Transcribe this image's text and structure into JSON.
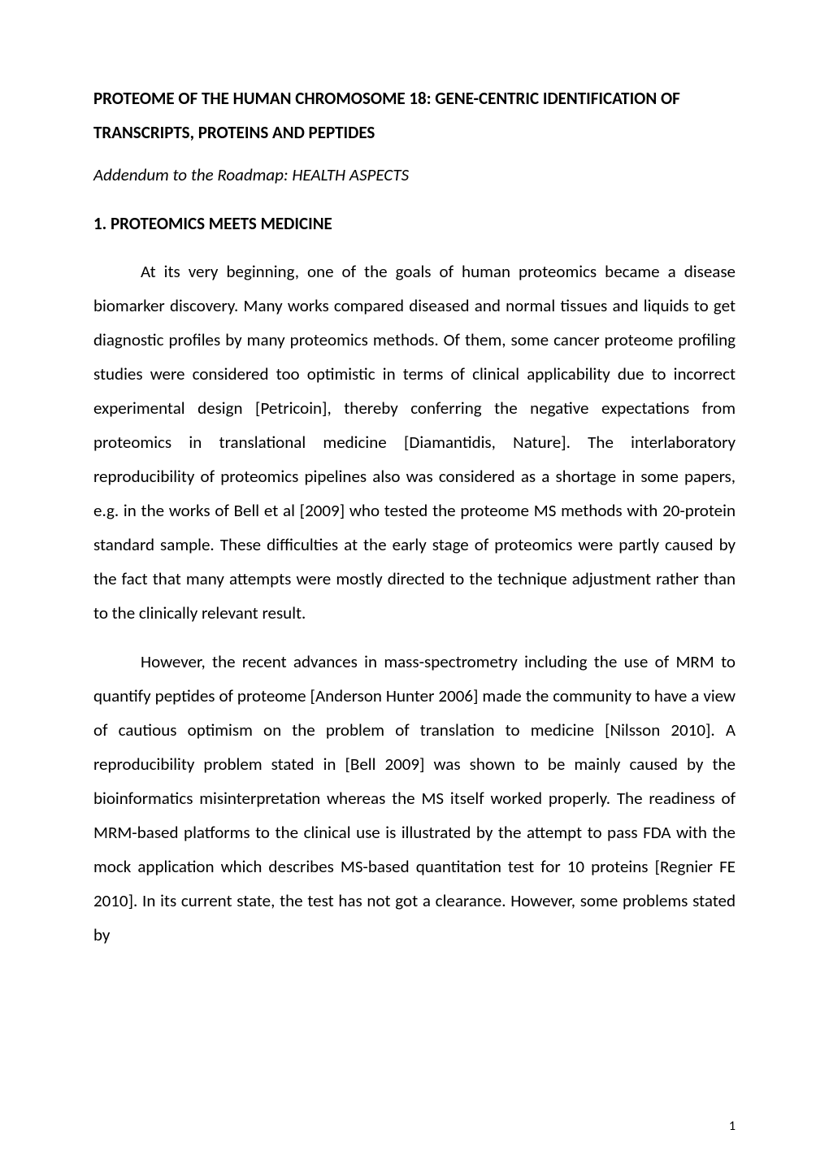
{
  "title": "PROTEOME OF THE HUMAN CHROMOSOME 18: GENE-CENTRIC IDENTIFICATION OF TRANSCRIPTS, PROTEINS AND PEPTIDES",
  "subtitle": "Addendum to the Roadmap: HEALTH ASPECTS",
  "section_heading": "1. PROTEOMICS MEETS MEDICINE",
  "paragraphs": [
    "At its very beginning, one of the goals of human proteomics became a disease biomarker discovery. Many works compared diseased and normal tissues and liquids to get diagnostic profiles by many proteomics methods. Of them, some cancer proteome profiling studies were considered too optimistic in terms of clinical applicability due to incorrect experimental design [Petricoin], thereby conferring the negative expectations from proteomics in translational medicine [Diamantidis, Nature]. The interlaboratory reproducibility of proteomics pipelines also was considered as a shortage in some papers, e.g. in the works of Bell et al [2009] who tested the proteome MS methods with 20-protein standard sample. These difficulties at the early stage of proteomics were partly caused by the fact that many attempts were mostly directed to the technique adjustment rather than to the clinically relevant result.",
    "However, the recent advances in mass-spectrometry including the use of MRM to quantify peptides of proteome [Anderson Hunter 2006] made the community to have a view of cautious optimism on the problem of translation to medicine [Nilsson 2010]. A reproducibility problem stated in [Bell 2009] was shown to be mainly caused by the bioinformatics misinterpretation whereas the MS itself worked properly. The readiness of MRM-based platforms to the clinical use is illustrated by the attempt to pass FDA with the mock application which describes MS-based quantitation test for 10 proteins [Regnier FE 2010]. In its current state, the test has not got a clearance. However, some problems stated by"
  ],
  "page_number": "1"
}
